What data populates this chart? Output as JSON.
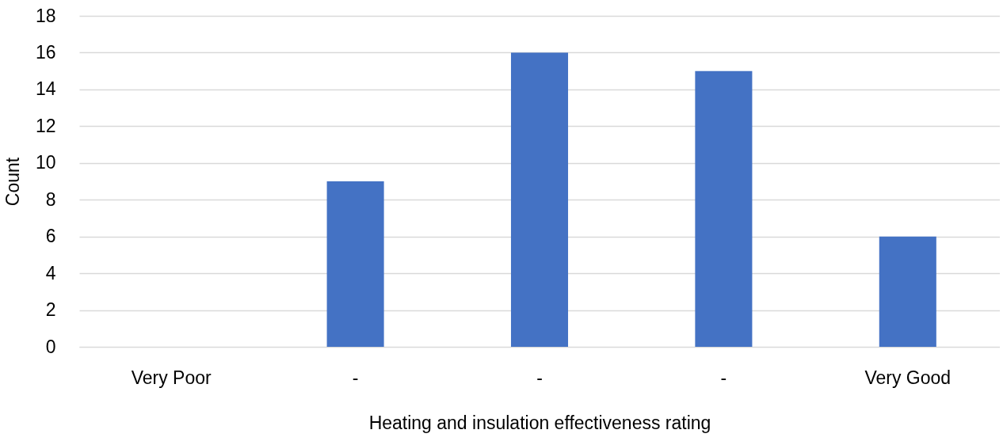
{
  "chart_data": {
    "type": "bar",
    "xlabel": "Heating and insulation effectiveness rating",
    "ylabel": "Count",
    "categories": [
      "Very Poor",
      "-",
      "-",
      "-",
      "Very Good"
    ],
    "values": [
      0,
      9,
      16,
      15,
      6
    ],
    "color": "#4472c4",
    "ylim": [
      0,
      18
    ],
    "yticks": [
      0,
      2,
      4,
      6,
      8,
      10,
      12,
      14,
      16,
      18
    ],
    "grid": "y"
  }
}
